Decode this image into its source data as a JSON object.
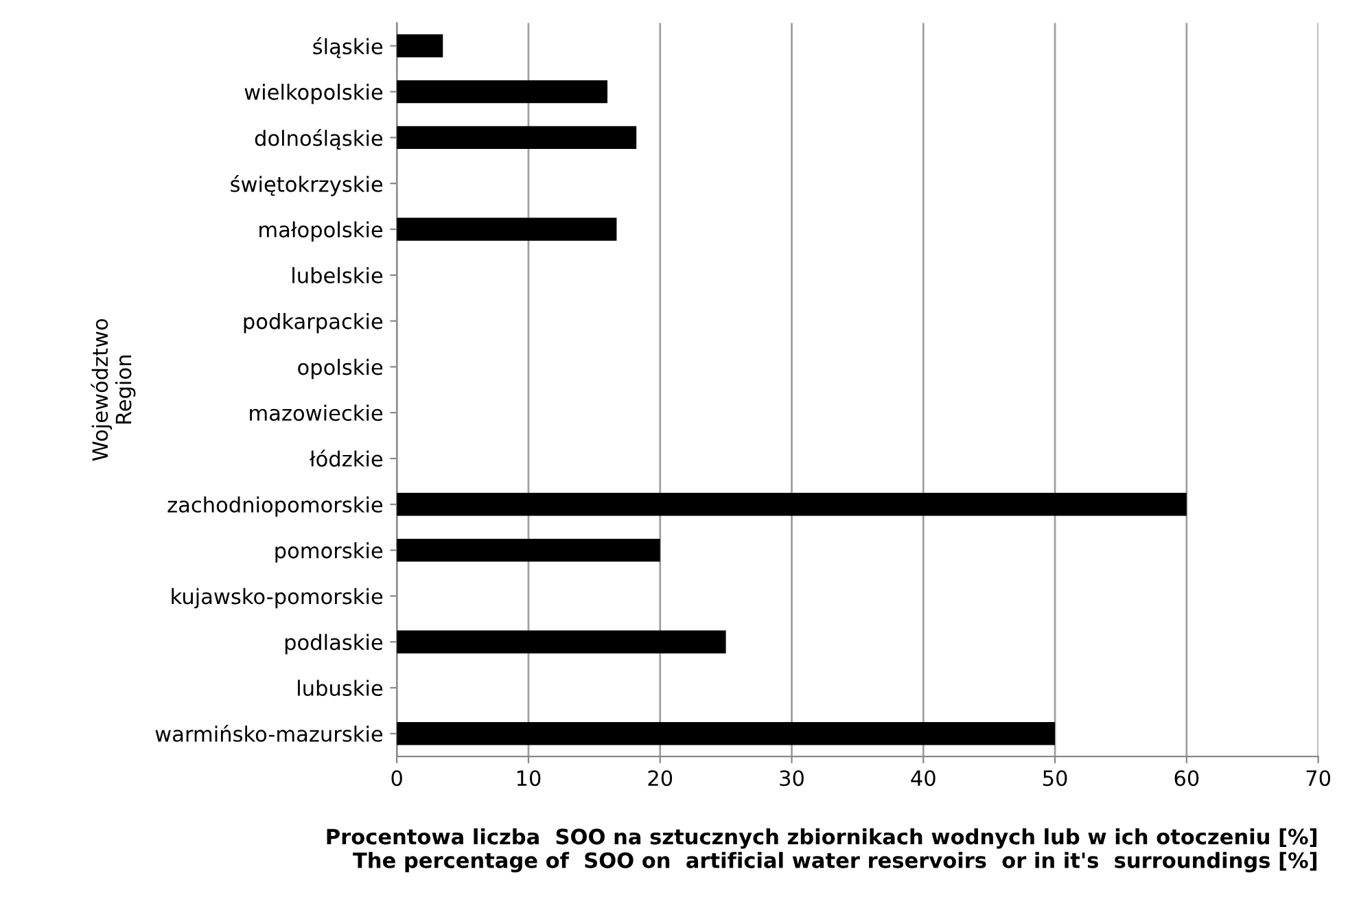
{
  "chart_data": {
    "type": "bar",
    "orientation": "horizontal",
    "categories": [
      "śląskie",
      "wielkopolskie",
      "dolnośląskie",
      "świętokrzyskie",
      "małopolskie",
      "lubelskie",
      "podkarpackie",
      "opolskie",
      "mazowieckie",
      "łódzkie",
      "zachodniopomorskie",
      "pomorskie",
      "kujawsko-pomorskie",
      "podlaskie",
      "lubuskie",
      "warmińsko-mazurskie"
    ],
    "values": [
      3.5,
      16,
      18.2,
      0,
      16.7,
      0,
      0,
      0,
      0,
      0,
      60,
      20,
      0,
      25,
      0,
      50
    ],
    "color": "#000000",
    "xlim": [
      0,
      70
    ],
    "xticks": [
      0,
      10,
      20,
      30,
      40,
      50,
      60,
      70
    ],
    "grid": "x",
    "xlabel": "Procentowa liczba  SOO na sztucznych zbiornikach wodnych lub w ich otoczeniu [%]\nThe percentage of  SOO on  artificial water reservoirs  or in it's  surroundings [%]",
    "ylabel": "Województwo\nRegion"
  }
}
